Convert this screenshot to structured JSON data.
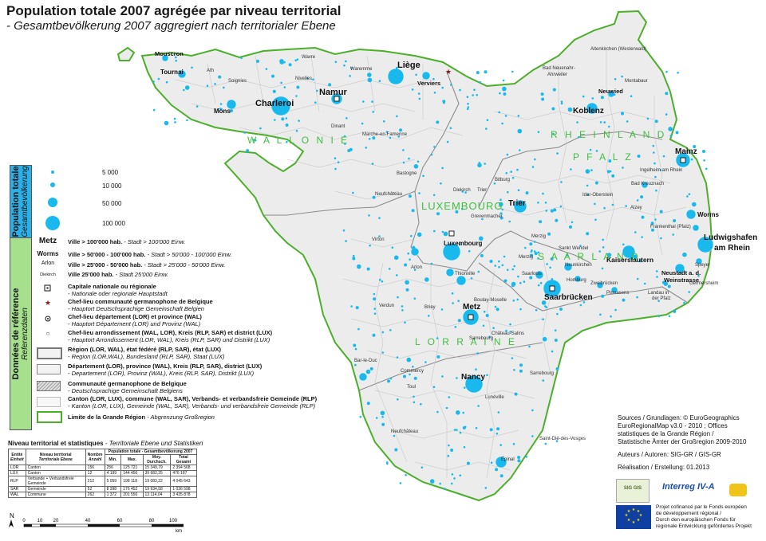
{
  "header": {
    "title": "Population totale 2007 agrégée par niveau territorial",
    "subtitle": "- Gesamtbevölkerung 2007 aggregiert nach territorialer Ebene"
  },
  "map": {
    "regions": [
      {
        "id": "wallonie",
        "label": "W A L L O N I E"
      },
      {
        "id": "luxembourg",
        "label": "LUXEMBOURG"
      },
      {
        "id": "rheinland",
        "label": "R H E I N L A N D"
      },
      {
        "id": "pfalz",
        "label": "P F A L Z"
      },
      {
        "id": "saarland",
        "label": "S A A R L A N D"
      },
      {
        "id": "lorraine",
        "label": "L O R R A I N E"
      }
    ],
    "cities_large": [
      {
        "id": "charleroi",
        "label": "Charleroi"
      },
      {
        "id": "liege",
        "label": "Liège"
      },
      {
        "id": "namur",
        "label": "Namur"
      },
      {
        "id": "koblenz",
        "label": "Koblenz"
      },
      {
        "id": "mainz",
        "label": "Mainz"
      },
      {
        "id": "trier",
        "label": "Trier"
      },
      {
        "id": "luxembourg",
        "label": "Luxembourg"
      },
      {
        "id": "metz",
        "label": "Metz"
      },
      {
        "id": "saarbrucken",
        "label": "Saarbrücken"
      },
      {
        "id": "nancy",
        "label": "Nancy"
      },
      {
        "id": "ludwigshafen",
        "label": "Ludwigshafen am Rhein"
      },
      {
        "id": "kaiserslautern",
        "label": "Kaiserslautern"
      },
      {
        "id": "worms",
        "label": "Worms"
      },
      {
        "id": "mons",
        "label": "Mons"
      },
      {
        "id": "tournai",
        "label": "Tournai"
      },
      {
        "id": "mouscron",
        "label": "Mouscron"
      },
      {
        "id": "verviers",
        "label": "Verviers"
      },
      {
        "id": "neuwied",
        "label": "Neuwied"
      },
      {
        "id": "neustadt",
        "label": "Neustadt a. d. Weinstrasse"
      }
    ]
  },
  "legend": {
    "population_title": "Population totale",
    "population_title_de": "Gesamtbevölkerung",
    "population_values": [
      "5 000",
      "10 000",
      "50 000",
      "100 000"
    ],
    "reference_title": "Données de référence",
    "reference_title_de": "Referenzdaten",
    "size_rows": [
      {
        "key": "Metz",
        "fr": "Ville > 100'000 hab.",
        "de": "- Stadt > 100'000 Einw."
      },
      {
        "key": "Worms",
        "fr": "Ville > 50'000 - 100'000 hab.",
        "de": "- Stadt > 50'000 - 100'000 Einw."
      },
      {
        "key": "Arlon",
        "fr": "Ville > 25'000 - 50'000 hab.",
        "de": "- Stadt > 25'000 - 50'000 Einw."
      },
      {
        "key": "Diekirch",
        "fr": "Ville  25'000  hab.",
        "de": "- Stadt 25'000 Einw."
      }
    ],
    "symbol_rows": [
      {
        "fr": "Capitale nationale ou régionale",
        "de": "- Nationale oder regionale Hauptstadt"
      },
      {
        "fr": "Chef-lieu communauté germanophone de Belgique",
        "de": "- Hauptort Deutschsprachige Gemeinschaft Belgien"
      },
      {
        "fr": "Chef-lieu département (LOR) et province (WAL)",
        "de": "- Hauptort Département (LOR) und Provinz (WAL)"
      },
      {
        "fr": "Chef-lieu arrondissement (WAL, LOR), Kreis (RLP, SAR) et district (LUX)",
        "de": "- Hauptort Arrondissement (LOR, WAL), Kreis (RLP, SAR) und Distrikt (LUX)"
      },
      {
        "fr": "Région (LOR, WAL), état fédéré (RLP, SAR), état (LUX)",
        "de": "- Region (LOR,WAL), Bundesland (RLP, SAR), Staat (LUX)"
      },
      {
        "fr": "Département (LOR), province (WAL), Kreis (RLP, SAR), district (LUX)",
        "de": "- Departement (LOR), Provinz (WAL), Kreis (RLP, SAR), Distrikt  (LUX)"
      },
      {
        "fr": "Communauté germanophone de Belgique",
        "de": "- Deutschsprachige Gemeinschaft Belgiens"
      },
      {
        "fr": "Canton (LOR, LUX), commune (WAL, SAR), Verbands- et verbandsfreie Gemeinde (RLP)",
        "de": "- Kanton (LOR, LUX), Gemeinde (WAL, SAR), Verbands- und verbandsfreie Gemeinde (RLP)"
      },
      {
        "fr": "Limite de la Grande Région",
        "de": "- Abgrenzung Großregion"
      }
    ]
  },
  "stats": {
    "title": "Niveau territorial et statistiques",
    "title_de": "- Territoriale Ebene und Statistiken",
    "h_group": "Population totale - Gesamtbevölkerung 2007",
    "h_entity": "Entité",
    "h_entity_de": "Einheit",
    "h_level": "Niveau territorial",
    "h_level_de": "Territoriale Ebene",
    "h_count": "Nombre",
    "h_count_de": "Anzahl",
    "h_min": "Min.",
    "h_max": "Max.",
    "h_avg": "Moy.",
    "h_avg_de": "Durchsch.",
    "h_total": "Total",
    "h_total_de": "Gesamt",
    "rows": [
      {
        "entity": "LOR",
        "level": "Canton",
        "count": "156",
        "min": "256",
        "max": "125 721",
        "avg": "15 349,79",
        "total": "2 394 568"
      },
      {
        "entity": "LUX",
        "level": "Canton",
        "count": "12",
        "min": "4 199",
        "max": "144 456",
        "avg": "39 682,25",
        "total": "476 187"
      },
      {
        "entity": "RLP",
        "level": "Verbande + Verbandsfreie Gemeinde",
        "count": "212",
        "min": "5 059",
        "max": "198 118",
        "avg": "19 083,22",
        "total": "4 045 643"
      },
      {
        "entity": "SAR",
        "level": "Gemeinde",
        "count": "52",
        "min": "8 398",
        "max": "176 452",
        "avg": "19 934,58",
        "total": "1 036 598"
      },
      {
        "entity": "WAL",
        "level": "Commune",
        "count": "262",
        "min": "1 372",
        "max": "201 550",
        "avg": "13 114,04",
        "total": "3 435 878"
      }
    ]
  },
  "scale": {
    "north": "N",
    "ticks": [
      "0",
      "10",
      "20",
      "40",
      "60",
      "80",
      "100"
    ],
    "unit": "km"
  },
  "sources": {
    "line1": "Sources / Grundlagen: © EuroGeographics",
    "line2": "EuroRegionalMap v3.0 - 2010 ; Offices",
    "line3": "statistiques de la Grande Région /",
    "line4": "Statistische Ämter der Großregion 2009-2010",
    "authors": "Auteurs / Autoren: SIG-GR / GIS-GR",
    "date": "Réalisation / Erstellung: 01.2013",
    "logo_sig": "SIG GIS",
    "logo_interreg": "Interreg IV-A",
    "eu_text1": "Projet cofinancé par le Fonds européen",
    "eu_text2": "de développement régional /",
    "eu_text3": "Durch den europäischen Fonds für",
    "eu_text4": "regionale Entwicklung gefördertes Projekt"
  },
  "colors": {
    "dot": "#19b9ee",
    "region_label": "#3fbf3f",
    "border_green": "#4caf2a",
    "legend_pop": "#2ab0e6",
    "legend_ref": "#a6e08c"
  }
}
